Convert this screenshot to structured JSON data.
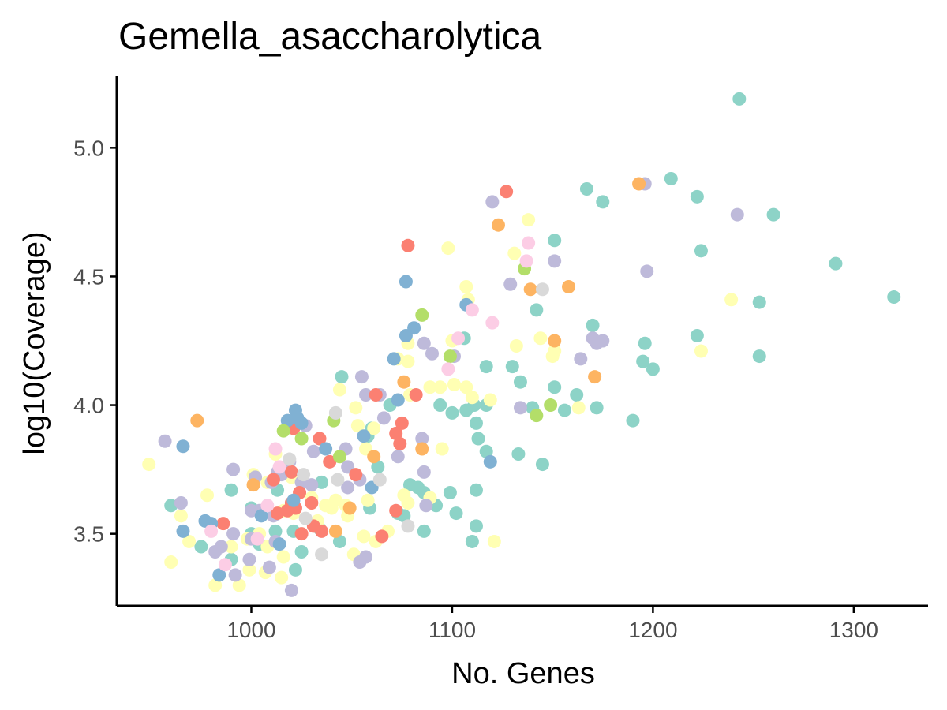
{
  "chart_data": {
    "type": "scatter",
    "title": "Gemella_asaccharolytica",
    "xlabel": "No. Genes",
    "ylabel": "log10(Coverage)",
    "xlim": [
      933,
      1337
    ],
    "ylim": [
      3.22,
      5.28
    ],
    "xticks": [
      1000,
      1100,
      1200,
      1300
    ],
    "yticks": [
      3.5,
      4.0,
      4.5,
      5.0
    ],
    "ytick_labels": [
      "3.5",
      "4.0",
      "4.5",
      "5.0"
    ],
    "grid": false,
    "legend": "none",
    "palette": {
      "teal": "#8dd3c7",
      "yellow": "#ffffb3",
      "lavender": "#bebada",
      "salmon": "#fb8072",
      "blue": "#80b1d3",
      "orange": "#fdb462",
      "green": "#b3de69",
      "pink": "#fccde5",
      "grey": "#d9d9d9"
    },
    "groups": [
      {
        "color": "#8dd3c7",
        "points": [
          [
            1243,
            5.19
          ],
          [
            1209,
            4.88
          ],
          [
            1167,
            4.84
          ],
          [
            1175,
            4.79
          ],
          [
            1222,
            4.81
          ],
          [
            1260,
            4.74
          ],
          [
            1151,
            4.64
          ],
          [
            1224,
            4.6
          ],
          [
            1291,
            4.55
          ],
          [
            1320,
            4.42
          ],
          [
            1253,
            4.4
          ],
          [
            1142,
            4.37
          ],
          [
            1170,
            4.31
          ],
          [
            1222,
            4.27
          ],
          [
            1196,
            4.24
          ],
          [
            1195,
            4.17
          ],
          [
            1200,
            4.14
          ],
          [
            1253,
            4.19
          ],
          [
            1117,
            4.15
          ],
          [
            1130,
            4.15
          ],
          [
            1134,
            4.09
          ],
          [
            1151,
            4.07
          ],
          [
            1162,
            4.04
          ],
          [
            1111,
            4.0
          ],
          [
            1117,
            4.0
          ],
          [
            1140,
            3.99
          ],
          [
            1156,
            3.98
          ],
          [
            1172,
            3.99
          ],
          [
            1190,
            3.94
          ],
          [
            1112,
            3.93
          ],
          [
            1113,
            3.87
          ],
          [
            1117,
            3.82
          ],
          [
            1133,
            3.81
          ],
          [
            1145,
            3.77
          ],
          [
            1100,
            3.97
          ],
          [
            1107,
            3.98
          ],
          [
            1106,
            4.26
          ],
          [
            1094,
            4.0
          ],
          [
            1069,
            4.0
          ],
          [
            1060,
            3.91
          ],
          [
            1058,
            3.88
          ],
          [
            1063,
            3.76
          ],
          [
            1079,
            3.69
          ],
          [
            1083,
            3.68
          ],
          [
            1086,
            3.66
          ],
          [
            1099,
            3.66
          ],
          [
            1112,
            3.67
          ],
          [
            1092,
            3.61
          ],
          [
            1102,
            3.58
          ],
          [
            1076,
            3.57
          ],
          [
            1086,
            3.51
          ],
          [
            1112,
            3.53
          ],
          [
            1110,
            3.47
          ],
          [
            1073,
            3.58
          ],
          [
            1059,
            3.6
          ],
          [
            1045,
            4.11
          ],
          [
            1013,
            3.67
          ],
          [
            1000,
            3.5
          ],
          [
            1004,
            3.46
          ],
          [
            1012,
            3.51
          ],
          [
            990,
            3.67
          ],
          [
            975,
            3.45
          ],
          [
            960,
            3.61
          ],
          [
            1044,
            3.47
          ],
          [
            1022,
            3.36
          ],
          [
            1025,
            3.43
          ],
          [
            1034,
            3.52
          ],
          [
            1000,
            3.6
          ],
          [
            990,
            3.4
          ],
          [
            1035,
            3.7
          ],
          [
            1021,
            3.51
          ]
        ]
      },
      {
        "color": "#ffffb3",
        "points": [
          [
            1138,
            4.72
          ],
          [
            1131,
            4.59
          ],
          [
            1098,
            4.61
          ],
          [
            1107,
            4.46
          ],
          [
            1108,
            4.41
          ],
          [
            1239,
            4.41
          ],
          [
            1224,
            4.21
          ],
          [
            1144,
            4.26
          ],
          [
            1151,
            4.21
          ],
          [
            1132,
            4.23
          ],
          [
            1100,
            4.25
          ],
          [
            1078,
            4.24
          ],
          [
            1073,
            4.18
          ],
          [
            1078,
            4.17
          ],
          [
            1150,
            4.19
          ],
          [
            1107,
            4.07
          ],
          [
            1110,
            4.03
          ],
          [
            1119,
            4.02
          ],
          [
            1163,
            3.99
          ],
          [
            1089,
            4.07
          ],
          [
            1094,
            4.07
          ],
          [
            1079,
            4.04
          ],
          [
            1101,
            4.08
          ],
          [
            1095,
            3.83
          ],
          [
            1061,
            3.91
          ],
          [
            1053,
            3.92
          ],
          [
            1044,
            4.06
          ],
          [
            1052,
            3.99
          ],
          [
            1057,
            3.83
          ],
          [
            1058,
            3.63
          ],
          [
            1042,
            3.63
          ],
          [
            1047,
            3.61
          ],
          [
            1030,
            3.64
          ],
          [
            1037,
            3.61
          ],
          [
            1020,
            3.72
          ],
          [
            1012,
            3.81
          ],
          [
            1008,
            3.7
          ],
          [
            1001,
            3.73
          ],
          [
            1016,
            3.59
          ],
          [
            1004,
            3.5
          ],
          [
            1016,
            3.41
          ],
          [
            1008,
            3.45
          ],
          [
            998,
            3.48
          ],
          [
            990,
            3.45
          ],
          [
            999,
            3.36
          ],
          [
            1007,
            3.35
          ],
          [
            1015,
            3.33
          ],
          [
            994,
            3.3
          ],
          [
            982,
            3.3
          ],
          [
            960,
            3.39
          ],
          [
            949,
            3.77
          ],
          [
            978,
            3.65
          ],
          [
            969,
            3.47
          ],
          [
            965,
            3.57
          ],
          [
            1051,
            3.42
          ],
          [
            1056,
            3.49
          ],
          [
            1062,
            3.47
          ],
          [
            1068,
            3.51
          ],
          [
            1078,
            3.62
          ],
          [
            1076,
            3.65
          ],
          [
            1089,
            3.64
          ],
          [
            1121,
            3.47
          ],
          [
            1030,
            3.62
          ],
          [
            1021,
            3.58
          ],
          [
            1033,
            3.55
          ],
          [
            1040,
            3.6
          ],
          [
            1048,
            3.57
          ]
        ]
      },
      {
        "color": "#bebada",
        "points": [
          [
            1196,
            4.86
          ],
          [
            1242,
            4.74
          ],
          [
            1120,
            4.79
          ],
          [
            1197,
            4.52
          ],
          [
            1151,
            4.56
          ],
          [
            1129,
            4.47
          ],
          [
            1170,
            4.26
          ],
          [
            1172,
            4.24
          ],
          [
            1175,
            4.25
          ],
          [
            1164,
            4.18
          ],
          [
            1086,
            4.24
          ],
          [
            1090,
            4.2
          ],
          [
            1101,
            4.19
          ],
          [
            1134,
            3.99
          ],
          [
            1066,
            3.95
          ],
          [
            1055,
            4.11
          ],
          [
            1064,
            4.04
          ],
          [
            1057,
            4.04
          ],
          [
            1073,
            3.8
          ],
          [
            1086,
            3.74
          ],
          [
            1085,
            3.87
          ],
          [
            1087,
            3.61
          ],
          [
            1048,
            3.76
          ],
          [
            1054,
            3.71
          ],
          [
            1027,
            3.92
          ],
          [
            1031,
            3.82
          ],
          [
            1019,
            3.78
          ],
          [
            1013,
            3.74
          ],
          [
            1010,
            3.7
          ],
          [
            1002,
            3.72
          ],
          [
            1025,
            3.7
          ],
          [
            1030,
            3.69
          ],
          [
            1004,
            3.59
          ],
          [
            1000,
            3.59
          ],
          [
            1011,
            3.57
          ],
          [
            1012,
            3.47
          ],
          [
            1000,
            3.48
          ],
          [
            991,
            3.5
          ],
          [
            985,
            3.45
          ],
          [
            982,
            3.43
          ],
          [
            992,
            3.34
          ],
          [
            1009,
            3.37
          ],
          [
            1020,
            3.28
          ],
          [
            999,
            3.4
          ],
          [
            1057,
            3.41
          ],
          [
            1054,
            3.39
          ],
          [
            957,
            3.86
          ],
          [
            965,
            3.62
          ],
          [
            991,
            3.75
          ],
          [
            1048,
            3.68
          ],
          [
            1047,
            3.83
          ],
          [
            1015,
            3.73
          ]
        ]
      },
      {
        "color": "#fb8072",
        "points": [
          [
            1127,
            4.83
          ],
          [
            1078,
            4.62
          ],
          [
            1082,
            4.04
          ],
          [
            1062,
            4.04
          ],
          [
            1075,
            3.93
          ],
          [
            1072,
            3.89
          ],
          [
            1074,
            3.85
          ],
          [
            1021,
            3.91
          ],
          [
            1034,
            3.87
          ],
          [
            1039,
            3.78
          ],
          [
            1052,
            3.73
          ],
          [
            1020,
            3.74
          ],
          [
            1024,
            3.66
          ],
          [
            1020,
            3.62
          ],
          [
            1018,
            3.59
          ],
          [
            1022,
            3.6
          ],
          [
            1030,
            3.62
          ],
          [
            1035,
            3.51
          ],
          [
            1025,
            3.5
          ],
          [
            1031,
            3.53
          ],
          [
            1013,
            3.58
          ],
          [
            1011,
            3.71
          ],
          [
            986,
            3.54
          ],
          [
            1065,
            3.49
          ],
          [
            1072,
            3.59
          ]
        ]
      },
      {
        "color": "#80b1d3",
        "points": [
          [
            1077,
            4.48
          ],
          [
            1107,
            4.39
          ],
          [
            1081,
            4.3
          ],
          [
            1077,
            4.27
          ],
          [
            1071,
            4.18
          ],
          [
            1073,
            4.02
          ],
          [
            1056,
            3.88
          ],
          [
            1022,
            3.98
          ],
          [
            1023,
            3.95
          ],
          [
            1018,
            3.94
          ],
          [
            1025,
            3.93
          ],
          [
            1037,
            3.83
          ],
          [
            1060,
            3.68
          ],
          [
            1021,
            3.63
          ],
          [
            1119,
            3.78
          ],
          [
            966,
            3.84
          ],
          [
            966,
            3.51
          ],
          [
            977,
            3.55
          ],
          [
            980,
            3.54
          ],
          [
            984,
            3.34
          ],
          [
            1014,
            3.46
          ],
          [
            1005,
            3.57
          ]
        ]
      },
      {
        "color": "#fdb462",
        "points": [
          [
            1193,
            4.86
          ],
          [
            1123,
            4.7
          ],
          [
            1139,
            4.45
          ],
          [
            1158,
            4.46
          ],
          [
            1151,
            4.25
          ],
          [
            1171,
            4.11
          ],
          [
            1076,
            4.09
          ],
          [
            1085,
            3.83
          ],
          [
            1061,
            3.8
          ],
          [
            1049,
            3.6
          ],
          [
            1042,
            3.51
          ],
          [
            1001,
            3.69
          ],
          [
            973,
            3.94
          ]
        ]
      },
      {
        "color": "#b3de69",
        "points": [
          [
            1136,
            4.53
          ],
          [
            1085,
            4.35
          ],
          [
            1099,
            4.19
          ],
          [
            1149,
            4.0
          ],
          [
            1142,
            3.96
          ],
          [
            1044,
            3.8
          ],
          [
            1025,
            3.87
          ],
          [
            1016,
            3.9
          ],
          [
            1041,
            3.94
          ]
        ]
      },
      {
        "color": "#fccde5",
        "points": [
          [
            1138,
            4.63
          ],
          [
            1137,
            4.56
          ],
          [
            1110,
            4.37
          ],
          [
            1120,
            4.32
          ],
          [
            1103,
            4.26
          ],
          [
            1098,
            4.14
          ],
          [
            1012,
            3.83
          ],
          [
            1014,
            3.76
          ],
          [
            1008,
            3.61
          ],
          [
            987,
            3.38
          ],
          [
            980,
            3.51
          ],
          [
            1003,
            3.48
          ]
        ]
      },
      {
        "color": "#d9d9d9",
        "points": [
          [
            1145,
            4.45
          ],
          [
            1042,
            3.97
          ],
          [
            1064,
            3.71
          ],
          [
            1043,
            3.71
          ],
          [
            1019,
            3.79
          ],
          [
            1026,
            3.73
          ],
          [
            1035,
            3.42
          ],
          [
            1078,
            3.53
          ],
          [
            1027,
            3.56
          ]
        ]
      }
    ]
  }
}
